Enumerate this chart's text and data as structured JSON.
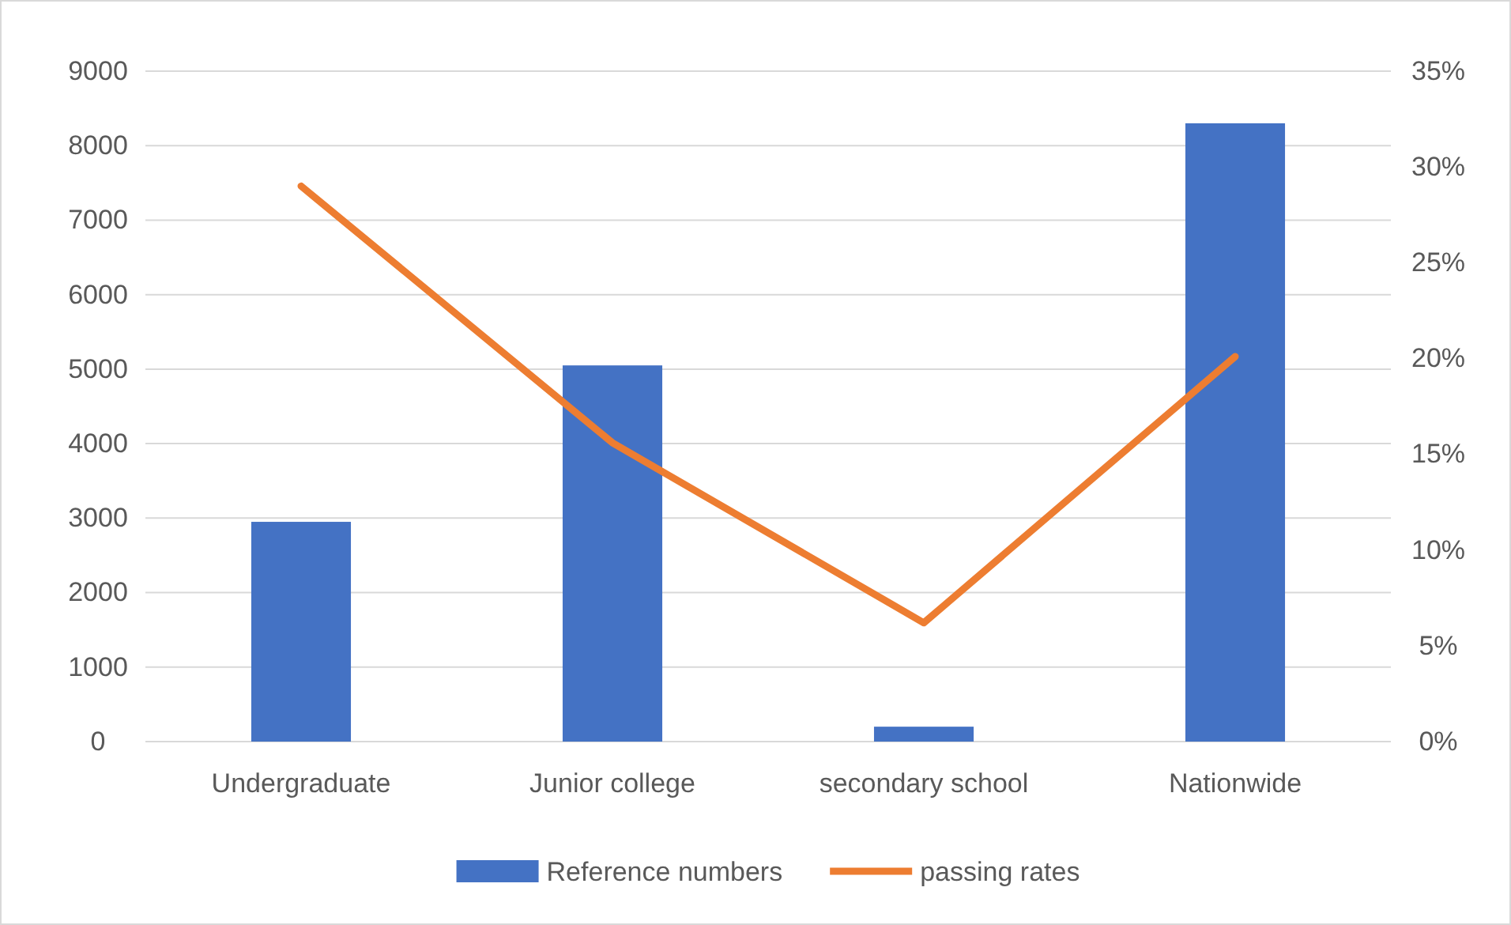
{
  "chart_data": {
    "type": "bar",
    "categories": [
      "Undergraduate",
      "Junior college",
      "secondary school",
      "Nationwide"
    ],
    "series": [
      {
        "name": "Reference numbers",
        "color": "#4472c4",
        "values": [
          2950,
          5050,
          200,
          8300
        ]
      },
      {
        "name": "passing rates",
        "type": "line",
        "axis": "y2",
        "color": "#ed7d31",
        "values": [
          0.29,
          0.156,
          0.062,
          0.201
        ]
      }
    ],
    "ylim": [
      0,
      9000
    ],
    "yticks": [
      0,
      1000,
      2000,
      3000,
      4000,
      5000,
      6000,
      7000,
      8000,
      9000
    ],
    "y2lim": [
      0,
      0.35
    ],
    "y2ticks": [
      {
        "value": 0,
        "label": "0%"
      },
      {
        "value": 0.05,
        "label": "5%"
      },
      {
        "value": 0.1,
        "label": "10%"
      },
      {
        "value": 0.15,
        "label": "15%"
      },
      {
        "value": 0.2,
        "label": "20%"
      },
      {
        "value": 0.25,
        "label": "25%"
      },
      {
        "value": 0.3,
        "label": "30%"
      },
      {
        "value": 0.35,
        "label": "35%"
      }
    ],
    "grid": "y",
    "legend": "bottom",
    "marker": "none",
    "line_style": "solid"
  }
}
